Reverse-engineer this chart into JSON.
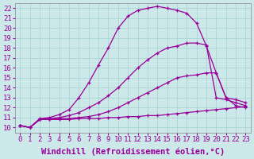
{
  "xlabel": "Windchill (Refroidissement éolien,°C)",
  "ylabel": "",
  "background_color": "#cce8e8",
  "line_color": "#990099",
  "xlim": [
    -0.5,
    23.5
  ],
  "ylim": [
    9.5,
    22.5
  ],
  "xticks": [
    0,
    1,
    2,
    3,
    4,
    5,
    6,
    7,
    8,
    9,
    10,
    11,
    12,
    13,
    14,
    15,
    16,
    17,
    18,
    19,
    20,
    21,
    22,
    23
  ],
  "yticks": [
    10,
    11,
    12,
    13,
    14,
    15,
    16,
    17,
    18,
    19,
    20,
    21,
    22
  ],
  "curves": [
    {
      "x": [
        0,
        1,
        2,
        3,
        4,
        5,
        6,
        7,
        8,
        9,
        10,
        11,
        12,
        13,
        14,
        15,
        16,
        17,
        18,
        19,
        20,
        21,
        22,
        23
      ],
      "y": [
        10.2,
        10.0,
        10.8,
        10.8,
        10.8,
        10.8,
        10.9,
        10.9,
        10.9,
        11.0,
        11.0,
        11.1,
        11.1,
        11.2,
        11.2,
        11.3,
        11.4,
        11.5,
        11.6,
        11.7,
        11.8,
        11.9,
        12.0,
        12.1
      ]
    },
    {
      "x": [
        0,
        1,
        2,
        3,
        4,
        5,
        6,
        7,
        8,
        9,
        10,
        11,
        12,
        13,
        14,
        15,
        16,
        17,
        18,
        19,
        20,
        21,
        22,
        23
      ],
      "y": [
        10.2,
        10.0,
        10.8,
        10.8,
        10.9,
        10.9,
        11.0,
        11.1,
        11.3,
        11.6,
        12.0,
        12.5,
        13.0,
        13.5,
        14.0,
        14.5,
        15.0,
        15.2,
        15.3,
        15.5,
        15.5,
        13.0,
        12.8,
        12.5
      ]
    },
    {
      "x": [
        0,
        1,
        2,
        3,
        4,
        5,
        6,
        7,
        8,
        9,
        10,
        11,
        12,
        13,
        14,
        15,
        16,
        17,
        18,
        19,
        20,
        21,
        22,
        23
      ],
      "y": [
        10.2,
        10.0,
        10.8,
        10.9,
        11.0,
        11.2,
        11.5,
        12.0,
        12.5,
        13.2,
        14.0,
        15.0,
        16.0,
        16.8,
        17.5,
        18.0,
        18.2,
        18.5,
        18.5,
        18.3,
        13.0,
        12.8,
        12.5,
        12.2
      ]
    },
    {
      "x": [
        0,
        1,
        2,
        3,
        4,
        5,
        6,
        7,
        8,
        9,
        10,
        11,
        12,
        13,
        14,
        15,
        16,
        17,
        18,
        19,
        20,
        21,
        22,
        23
      ],
      "y": [
        10.2,
        10.0,
        10.9,
        11.0,
        11.3,
        11.8,
        13.0,
        14.5,
        16.3,
        18.0,
        20.0,
        21.2,
        21.8,
        22.0,
        22.2,
        22.0,
        21.8,
        21.5,
        20.5,
        18.2,
        15.5,
        13.0,
        12.2,
        12.0
      ]
    }
  ],
  "grid_color": "#aad4d4",
  "tick_fontsize": 6.5,
  "label_fontsize": 7.5
}
